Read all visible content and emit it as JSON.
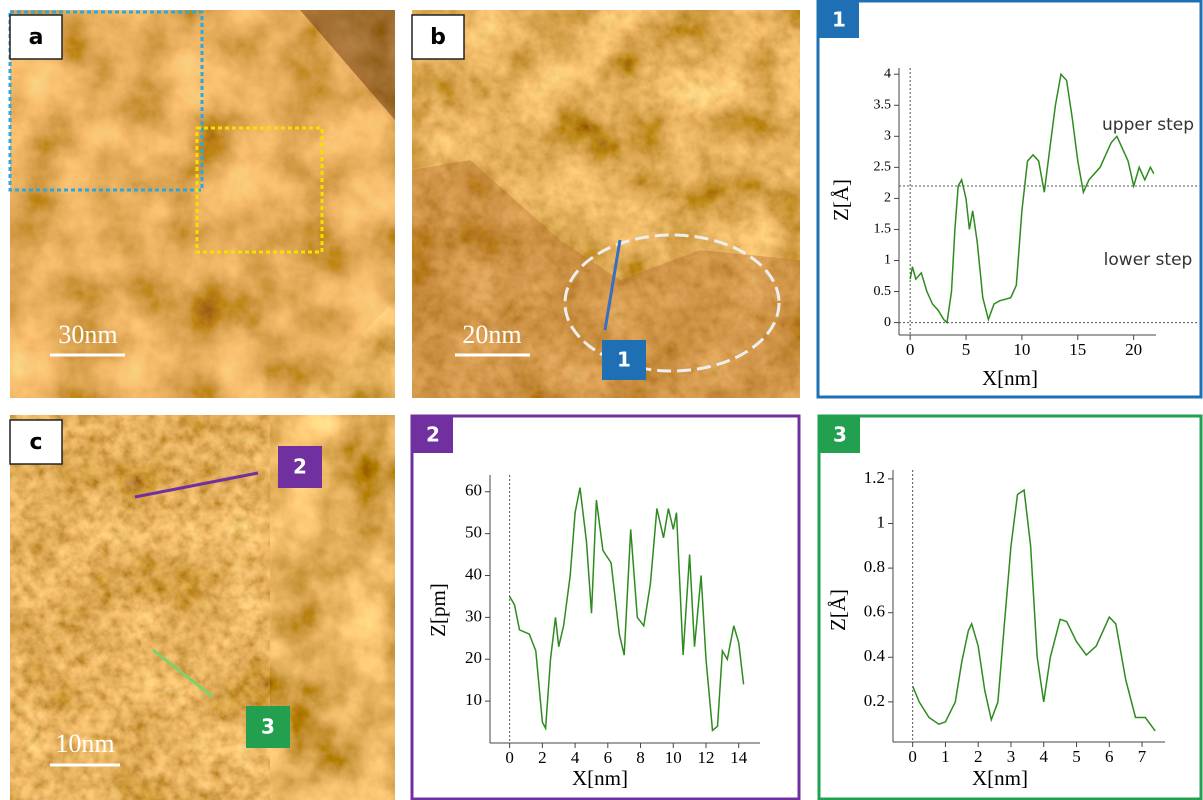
{
  "panels": [
    {
      "label": "a",
      "scale_bar": "30nm"
    },
    {
      "label": "b",
      "scale_bar": "20nm",
      "marker": "1"
    },
    {
      "label": "c",
      "scale_bar": "10nm",
      "markers": [
        "2",
        "3"
      ]
    }
  ],
  "chart_data": [
    {
      "type": "line",
      "badge": "1",
      "frame_color": "#1f6fb5",
      "color": "#2e8b1e",
      "xlabel": "X[nm]",
      "ylabel": "Z[Å]",
      "x": [
        0,
        0.2,
        0.5,
        1,
        1.5,
        2,
        2.5,
        3,
        3.3,
        3.7,
        4,
        4.3,
        4.6,
        5,
        5.3,
        5.6,
        6,
        6.5,
        7,
        7.5,
        8,
        9,
        9.5,
        10,
        10.5,
        11,
        11.5,
        12,
        12.5,
        13,
        13.5,
        14,
        14.5,
        15,
        15.5,
        16,
        17,
        18,
        18.5,
        19,
        19.5,
        20,
        20.5,
        21,
        21.5,
        21.8
      ],
      "values": [
        0.7,
        0.9,
        0.7,
        0.8,
        0.5,
        0.3,
        0.2,
        0.05,
        0,
        0.5,
        1.5,
        2.2,
        2.3,
        2.0,
        1.5,
        1.8,
        1.3,
        0.4,
        0.05,
        0.3,
        0.35,
        0.4,
        0.6,
        1.8,
        2.6,
        2.7,
        2.6,
        2.1,
        2.8,
        3.5,
        4.0,
        3.9,
        3.3,
        2.6,
        2.1,
        2.3,
        2.5,
        2.9,
        3.0,
        2.8,
        2.6,
        2.2,
        2.5,
        2.3,
        2.5,
        2.4
      ],
      "xlim": [
        -1,
        22
      ],
      "ylim": [
        -0.2,
        4.1
      ],
      "xticks": [
        0,
        5,
        10,
        15,
        20
      ],
      "yticks": [
        0,
        0.5,
        1,
        1.5,
        2,
        2.5,
        3,
        3.5,
        4
      ],
      "hlines": [
        0,
        2.2
      ],
      "vlines": [
        0
      ],
      "annotations": [
        "upper step",
        "lower step"
      ]
    },
    {
      "type": "line",
      "badge": "2",
      "frame_color": "#7030a0",
      "color": "#2e8b1e",
      "xlabel": "X[nm]",
      "ylabel": "Z[pm]",
      "x": [
        0,
        0.3,
        0.6,
        1.2,
        1.6,
        2,
        2.2,
        2.5,
        2.8,
        3,
        3.3,
        3.7,
        4,
        4.3,
        4.7,
        5,
        5.3,
        5.7,
        6.2,
        6.7,
        7,
        7.4,
        7.8,
        8.2,
        8.6,
        9,
        9.4,
        9.7,
        10,
        10.2,
        10.6,
        11,
        11.3,
        11.7,
        12,
        12.4,
        12.7,
        13,
        13.3,
        13.7,
        14,
        14.3
      ],
      "values": [
        35,
        33,
        27,
        26,
        22,
        5,
        3.5,
        20,
        30,
        23,
        28,
        40,
        55,
        61,
        48,
        31,
        58,
        46,
        43,
        26,
        21,
        51,
        30,
        28,
        38,
        56,
        49,
        56,
        51,
        55,
        21,
        45,
        23,
        40,
        20,
        3,
        4,
        22,
        20,
        28,
        24,
        14
      ],
      "xlim": [
        -1.2,
        15.3
      ],
      "ylim": [
        0,
        64
      ],
      "xticks": [
        0,
        2,
        4,
        6,
        8,
        10,
        12,
        14
      ],
      "yticks": [
        10,
        20,
        30,
        40,
        50,
        60
      ],
      "vlines": [
        0
      ]
    },
    {
      "type": "line",
      "badge": "3",
      "frame_color": "#22a050",
      "color": "#2e8b1e",
      "xlabel": "X[nm]",
      "ylabel": "Z[Å]",
      "x": [
        0,
        0.2,
        0.5,
        0.8,
        1,
        1.3,
        1.5,
        1.7,
        1.8,
        2,
        2.2,
        2.4,
        2.6,
        2.8,
        3,
        3.2,
        3.4,
        3.6,
        3.8,
        4,
        4.2,
        4.5,
        4.7,
        5,
        5.3,
        5.6,
        6,
        6.2,
        6.5,
        6.8,
        7.1,
        7.4
      ],
      "values": [
        0.27,
        0.2,
        0.13,
        0.1,
        0.11,
        0.2,
        0.38,
        0.52,
        0.55,
        0.45,
        0.25,
        0.12,
        0.2,
        0.55,
        0.9,
        1.13,
        1.15,
        0.9,
        0.4,
        0.2,
        0.4,
        0.57,
        0.56,
        0.47,
        0.41,
        0.45,
        0.58,
        0.55,
        0.3,
        0.13,
        0.13,
        0.07
      ],
      "xlim": [
        -0.6,
        7.7
      ],
      "ylim": [
        0.02,
        1.24
      ],
      "xticks": [
        0,
        1,
        2,
        3,
        4,
        5,
        6,
        7
      ],
      "yticks": [
        0.2,
        0.4,
        0.6,
        0.8,
        1,
        1.2
      ],
      "vlines": [
        0
      ]
    }
  ]
}
